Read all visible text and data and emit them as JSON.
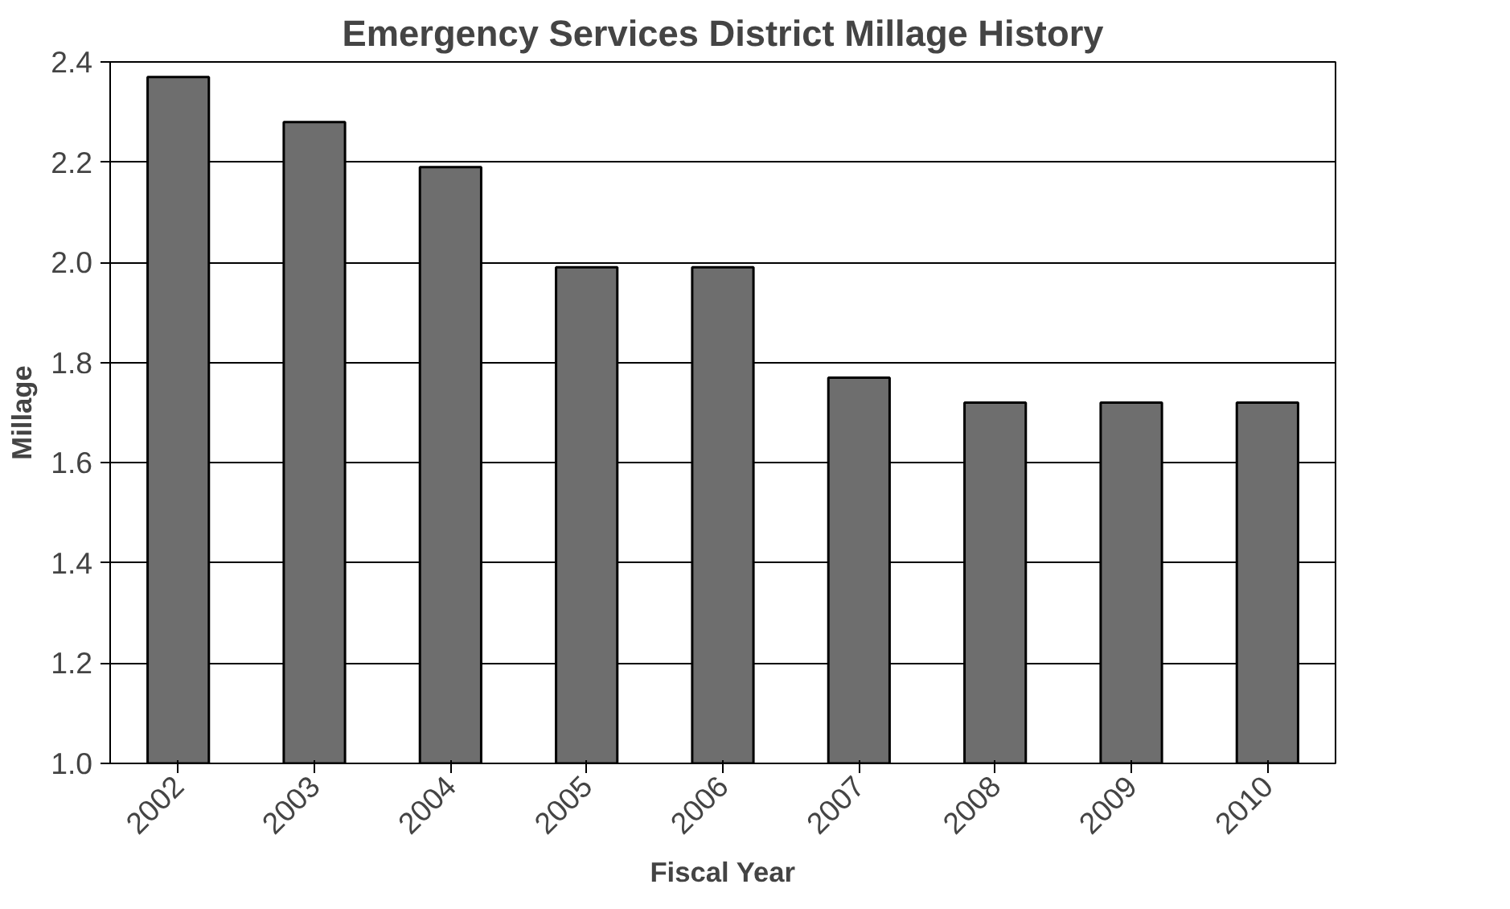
{
  "chart_data": {
    "type": "bar",
    "title": "Emergency Services District Millage History",
    "xlabel": "Fiscal Year",
    "ylabel": "Millage",
    "categories": [
      "2002",
      "2003",
      "2004",
      "2005",
      "2006",
      "2007",
      "2008",
      "2009",
      "2010"
    ],
    "values": [
      2.37,
      2.28,
      2.19,
      1.99,
      1.99,
      1.77,
      1.72,
      1.72,
      1.72
    ],
    "color": "#6e6e6e",
    "ylim": [
      1.0,
      2.4
    ],
    "yticks": [
      {
        "value": 1.0,
        "label": "1.0"
      },
      {
        "value": 1.2,
        "label": "1.2"
      },
      {
        "value": 1.4,
        "label": "1.4"
      },
      {
        "value": 1.6,
        "label": "1.6"
      },
      {
        "value": 1.8,
        "label": "1.8"
      },
      {
        "value": 2.0,
        "label": "2.0"
      },
      {
        "value": 2.2,
        "label": "2.2"
      },
      {
        "value": 2.4,
        "label": "2.4"
      }
    ],
    "grid": "y"
  }
}
